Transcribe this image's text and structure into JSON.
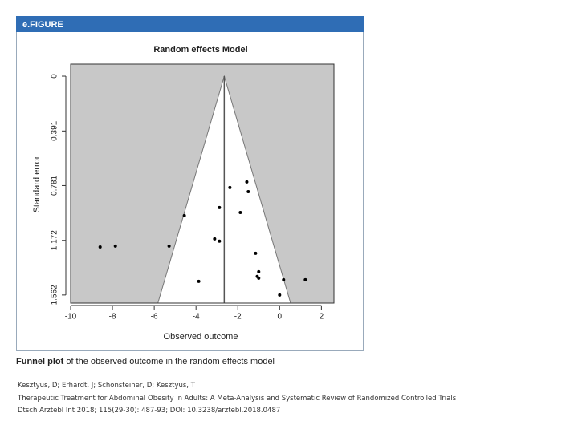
{
  "header": "e.FIGURE",
  "chart_data": {
    "type": "scatter",
    "title": "Random effects Model",
    "x_label": "Observed outcome",
    "y_label": "Standard error",
    "x": [
      -8.59,
      -7.86,
      -5.29,
      -4.56,
      -3.87,
      -3.11,
      -2.88,
      -2.88,
      -2.38,
      -1.88,
      -1.57,
      -1.5,
      -1.15,
      -1.0,
      -1.07,
      -1.0,
      0.19,
      1.23,
      0.0
    ],
    "values": [
      1.219,
      1.213,
      1.213,
      0.995,
      1.465,
      1.161,
      1.178,
      0.938,
      0.795,
      0.973,
      0.755,
      0.824,
      1.264,
      1.396,
      1.43,
      1.442,
      1.453,
      1.453,
      1.562
    ],
    "color": "#000000",
    "estimate": -2.65,
    "background": "#c8c8c8",
    "xlim": [
      -10,
      2.6
    ],
    "xticks": [
      -10,
      -8,
      -6,
      -4,
      -2,
      0,
      2
    ],
    "ylim": [
      -0.086,
      1.62
    ],
    "yticks": [
      0,
      0.391,
      0.781,
      1.172,
      1.562
    ],
    "y_reversed": true
  },
  "caption": {
    "bold": "Funnel plot",
    "rest": "of the observed outcome in the random effects model"
  },
  "citation": [
    "Kesztyüs, D; Erhardt, J; Schönsteiner, D; Kesztyüs, T",
    "Therapeutic Treatment for Abdominal Obesity in Adults: A Meta-Analysis and Systematic Review of Randomized Controlled Trials",
    "Dtsch Arztebl Int 2018; 115(29-30): 487-93; DOI: 10.3238/arztebl.2018.0487"
  ]
}
